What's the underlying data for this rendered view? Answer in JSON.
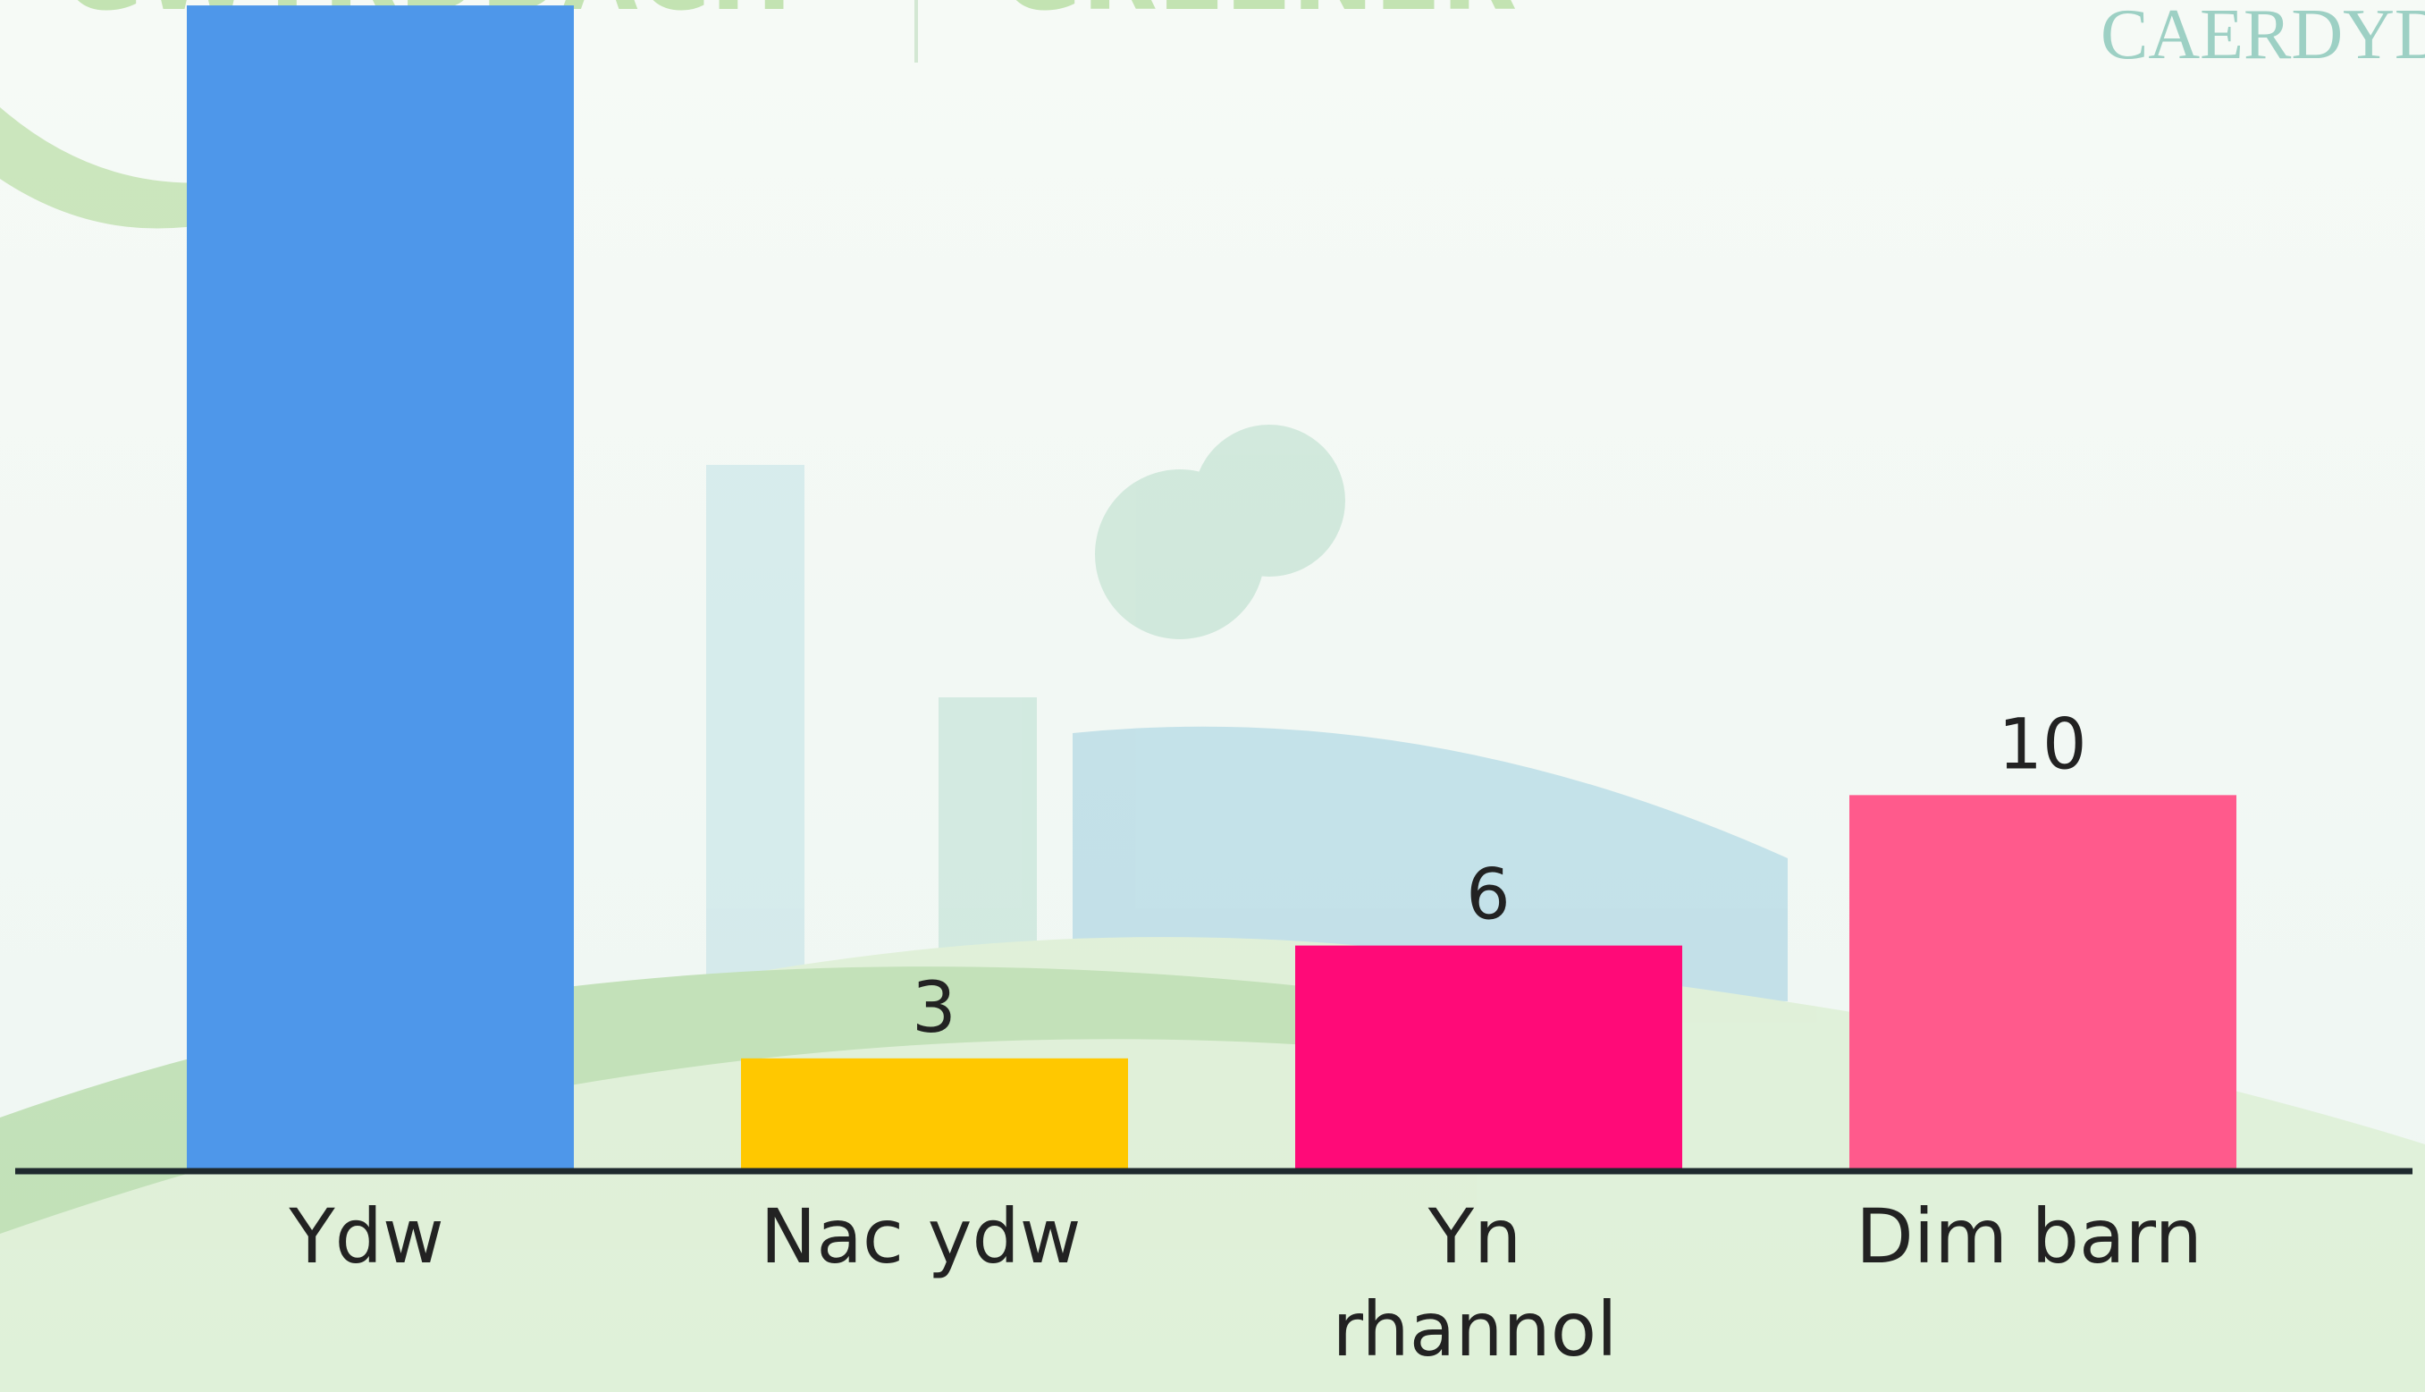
{
  "background_text": {
    "left": "GWYRDDACH",
    "right": "GREENER",
    "logo": "CAERDYDD"
  },
  "chart_data": {
    "type": "bar",
    "categories": [
      "Ydw",
      "Nac ydw",
      "Yn rhannol",
      "Dim barn"
    ],
    "values": [
      31,
      3,
      6,
      10
    ],
    "colors": [
      "#4e97ea",
      "#ffc800",
      "#ff0a78",
      "#ff5a8c"
    ],
    "ylim": [
      0,
      32
    ]
  }
}
